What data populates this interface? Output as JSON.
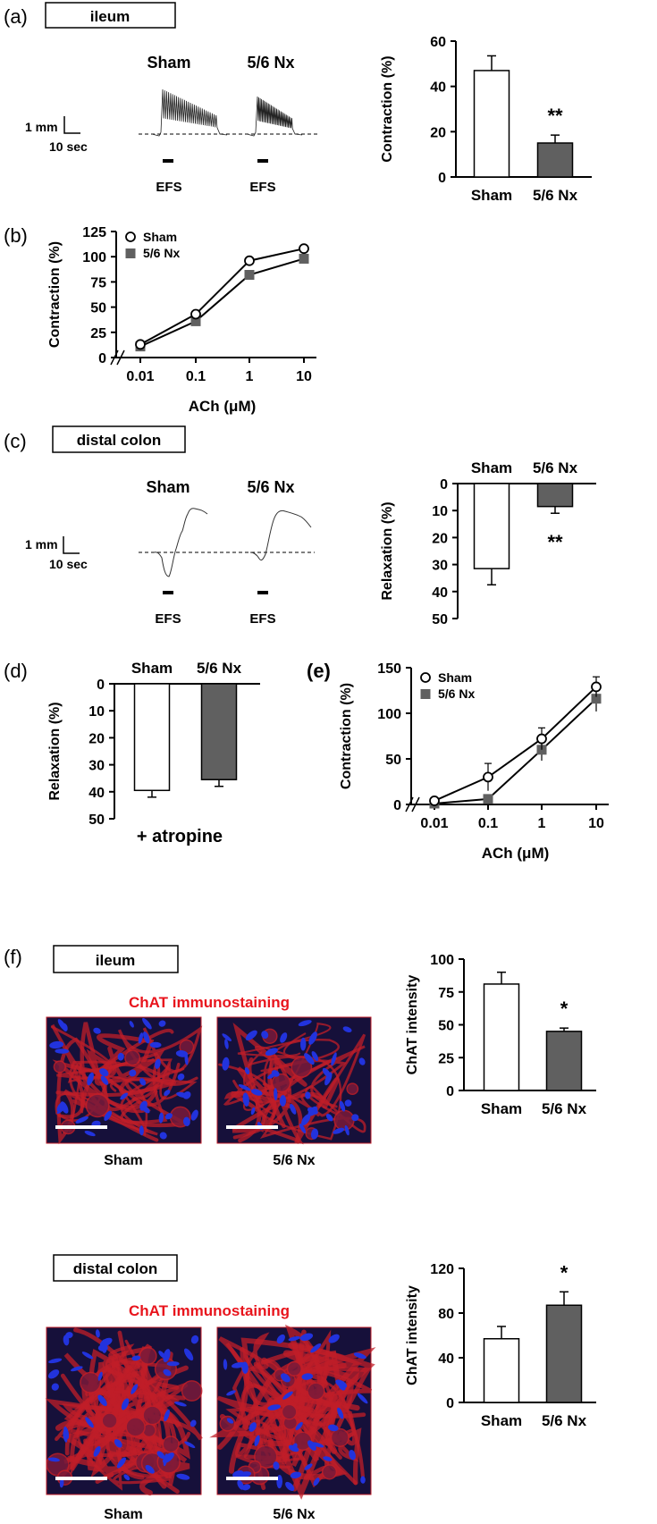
{
  "colors": {
    "sham_fill": "#ffffff",
    "nx_fill": "#606060",
    "axis": "#000000",
    "red_label": "#e8141c",
    "micro_bg": "#16103a",
    "micro_nuclei": "#2233dd",
    "micro_stain": "#c01e28"
  },
  "panels": {
    "a": {
      "tag": "(a)",
      "tissue": "ileum",
      "trace_sham": "Sham",
      "trace_nx": "5/6 Nx",
      "scale_y": "1 mm",
      "scale_x": "10 sec",
      "stim1": "EFS",
      "stim2": "EFS"
    },
    "b": {
      "tag": "(b)"
    },
    "c": {
      "tag": "(c)",
      "tissue": "distal colon",
      "trace_sham": "Sham",
      "trace_nx": "5/6 Nx",
      "scale_y": "1 mm",
      "scale_x": "10 sec",
      "stim1": "EFS",
      "stim2": "EFS"
    },
    "d": {
      "tag": "(d)"
    },
    "e": {
      "tag": "(e)"
    },
    "f": {
      "tag": "(f)",
      "tissue1": "ileum",
      "tissue2": "distal colon",
      "stain1": "ChAT immunostaining",
      "stain2": "ChAT immunostaining",
      "img1_label": "Sham",
      "img2_label": "5/6 Nx",
      "img3_label": "Sham",
      "img4_label": "5/6 Nx"
    }
  },
  "chart_data": [
    {
      "id": "a_bar",
      "type": "bar",
      "categories": [
        "Sham",
        "5/6 Nx"
      ],
      "values": [
        47,
        15
      ],
      "errors": [
        6.5,
        3.5
      ],
      "ylabel": "Contraction (%)",
      "ylim": [
        0,
        60
      ],
      "yticks": [
        0,
        20,
        40,
        60
      ],
      "annotations": [
        {
          "category": "5/6 Nx",
          "text": "**"
        }
      ]
    },
    {
      "id": "b_line",
      "type": "line",
      "x": [
        "0.01",
        "0.1",
        "1",
        "10"
      ],
      "xlabel": "ACh (μM)",
      "ylabel": "Contraction (%)",
      "ylim": [
        0,
        125
      ],
      "yticks": [
        0,
        25,
        50,
        75,
        100,
        125
      ],
      "legend_position": "top-left",
      "series": [
        {
          "name": "Sham",
          "values": [
            13,
            43,
            96,
            108
          ]
        },
        {
          "name": "5/6 Nx",
          "values": [
            11,
            36,
            82,
            98
          ]
        }
      ]
    },
    {
      "id": "c_bar",
      "type": "bar",
      "orientation": "inverted",
      "categories": [
        "Sham",
        "5/6 Nx"
      ],
      "values": [
        31.5,
        8.5
      ],
      "errors": [
        6,
        2.5
      ],
      "ylabel": "Relaxation (%)",
      "ylim": [
        0,
        50
      ],
      "yticks": [
        0,
        10,
        20,
        30,
        40,
        50
      ],
      "annotations": [
        {
          "category": "5/6 Nx",
          "text": "**"
        }
      ]
    },
    {
      "id": "d_bar",
      "type": "bar",
      "orientation": "inverted",
      "categories": [
        "Sham",
        "5/6 Nx"
      ],
      "values": [
        39.5,
        35.5
      ],
      "errors": [
        2.5,
        2.5
      ],
      "ylabel": "Relaxation (%)",
      "ylim": [
        0,
        50
      ],
      "yticks": [
        0,
        10,
        20,
        30,
        40,
        50
      ],
      "condition": "+ atropine"
    },
    {
      "id": "e_line",
      "type": "line",
      "x": [
        "0.01",
        "0.1",
        "1",
        "10"
      ],
      "xlabel": "ACh (μM)",
      "ylabel": "Contraction (%)",
      "ylim": [
        0,
        150
      ],
      "yticks": [
        0,
        50,
        100,
        150
      ],
      "legend_position": "top-left",
      "series": [
        {
          "name": "Sham",
          "values": [
            4,
            30,
            72,
            129
          ],
          "errors": [
            3,
            15,
            12,
            11
          ]
        },
        {
          "name": "5/6 Nx",
          "values": [
            1,
            6,
            60,
            116
          ],
          "errors": [
            1,
            2,
            12,
            14
          ]
        }
      ]
    },
    {
      "id": "f1_bar",
      "type": "bar",
      "categories": [
        "Sham",
        "5/6 Nx"
      ],
      "values": [
        81,
        45
      ],
      "errors": [
        9,
        2.5
      ],
      "ylabel": "ChAT intensity",
      "ylim": [
        0,
        100
      ],
      "yticks": [
        0,
        25,
        50,
        75,
        100
      ],
      "annotations": [
        {
          "category": "5/6 Nx",
          "text": "*"
        }
      ]
    },
    {
      "id": "f2_bar",
      "type": "bar",
      "categories": [
        "Sham",
        "5/6 Nx"
      ],
      "values": [
        57,
        87
      ],
      "errors": [
        11,
        12
      ],
      "ylabel": "ChAT intensity",
      "ylim": [
        0,
        120
      ],
      "yticks": [
        0,
        40,
        80,
        120
      ],
      "annotations": [
        {
          "category": "5/6 Nx",
          "text": "*"
        }
      ]
    }
  ]
}
